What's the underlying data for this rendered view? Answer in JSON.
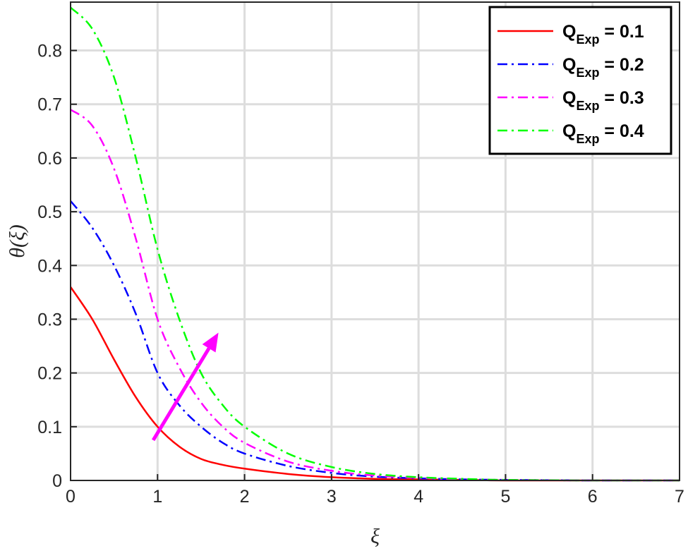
{
  "chart_data": {
    "type": "line",
    "xlabel": "ξ",
    "ylabel": "θ(ξ)",
    "xlim": [
      0,
      7
    ],
    "ylim": [
      0,
      0.89
    ],
    "xticks": [
      "0",
      "1",
      "2",
      "3",
      "4",
      "5",
      "6",
      "7"
    ],
    "yticks": [
      "0",
      "0.1",
      "0.2",
      "0.3",
      "0.4",
      "0.5",
      "0.6",
      "0.7",
      "0.8"
    ],
    "grid": true,
    "legend_position": "top-right",
    "x": [
      0,
      0.25,
      0.5,
      0.75,
      1,
      1.25,
      1.5,
      1.75,
      2,
      2.5,
      3,
      3.5,
      4,
      4.5,
      5,
      6,
      7
    ],
    "series": [
      {
        "legend_main": "Q",
        "legend_sub": "Exp",
        "legend_value": " = 0.1",
        "color": "#ff0000",
        "dash": "solid",
        "values": [
          0.36,
          0.3,
          0.225,
          0.155,
          0.1,
          0.063,
          0.04,
          0.029,
          0.022,
          0.012,
          0.006,
          0.003,
          0.002,
          0.001,
          0.0,
          0.0,
          0.0
        ]
      },
      {
        "legend_main": "Q",
        "legend_sub": "Exp",
        "legend_value": " = 0.2",
        "color": "#0000ff",
        "dash": "dashdot",
        "values": [
          0.52,
          0.47,
          0.4,
          0.31,
          0.2,
          0.14,
          0.1,
          0.07,
          0.05,
          0.027,
          0.014,
          0.007,
          0.004,
          0.002,
          0.001,
          0.0,
          0.0
        ]
      },
      {
        "legend_main": "Q",
        "legend_sub": "Exp",
        "legend_value": " = 0.3",
        "color": "#ff00ff",
        "dash": "dashdot",
        "values": [
          0.69,
          0.66,
          0.58,
          0.45,
          0.3,
          0.21,
          0.145,
          0.1,
          0.07,
          0.035,
          0.018,
          0.009,
          0.005,
          0.002,
          0.001,
          0.0,
          0.0
        ]
      },
      {
        "legend_main": "Q",
        "legend_sub": "Exp",
        "legend_value": " = 0.4",
        "color": "#00ff00",
        "dash": "dashdot",
        "values": [
          0.88,
          0.84,
          0.75,
          0.6,
          0.43,
          0.3,
          0.2,
          0.14,
          0.1,
          0.05,
          0.025,
          0.012,
          0.006,
          0.003,
          0.001,
          0.0,
          0.0
        ]
      }
    ],
    "annotations": [
      {
        "type": "arrow",
        "color": "#ff00ff",
        "from": [
          0.95,
          0.075
        ],
        "to": [
          1.7,
          0.275
        ]
      }
    ]
  }
}
